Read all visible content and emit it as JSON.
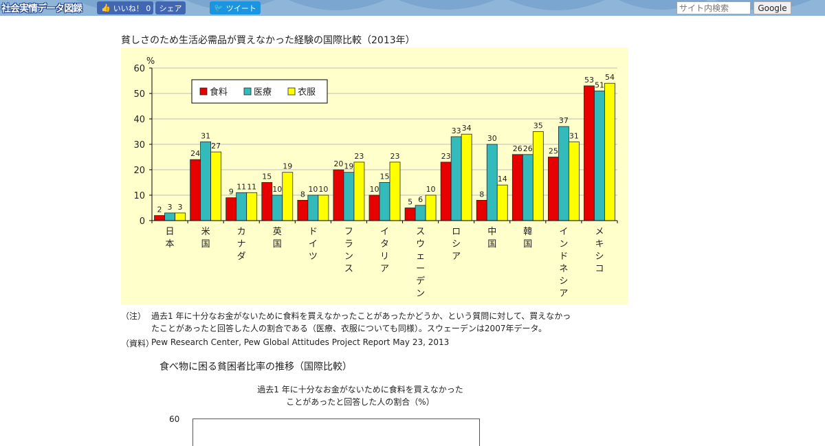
{
  "header": {
    "logo": "社会実情データ図録",
    "like_label": "いいね！ 0",
    "share_label": "シェア",
    "tweet_label": "ツイート",
    "search_placeholder": "サイト内検索",
    "search_button": "Google"
  },
  "chart_title": "貧しさのため生活必需品が買えなかった経験の国際比較（2013年）",
  "chart_data": {
    "type": "bar",
    "title": "貧しさのため生活必需品が買えなかった経験の国際比較（2013年）",
    "ylabel": "%",
    "ylim": [
      0,
      60
    ],
    "yticks": [
      0,
      10,
      20,
      30,
      40,
      50,
      60
    ],
    "grid": true,
    "legend_position": "top-left",
    "categories": [
      "日本",
      "米国",
      "カナダ",
      "英国",
      "ドイツ",
      "フランス",
      "イタリア",
      "スウェーデン",
      "ロシア",
      "中国",
      "韓国",
      "インドネシア",
      "メキシコ"
    ],
    "series": [
      {
        "name": "食料",
        "color": "#e60000",
        "values": [
          2,
          24,
          9,
          15,
          8,
          20,
          10,
          5,
          23,
          8,
          26,
          25,
          53
        ]
      },
      {
        "name": "医療",
        "color": "#33bbbb",
        "values": [
          3,
          31,
          11,
          10,
          10,
          19,
          15,
          6,
          33,
          30,
          26,
          37,
          51
        ]
      },
      {
        "name": "衣服",
        "color": "#ffff00",
        "values": [
          3,
          27,
          11,
          19,
          10,
          23,
          23,
          10,
          34,
          14,
          35,
          31,
          54
        ]
      }
    ]
  },
  "notes": {
    "note_label": "（注）",
    "note_line1": "過去1 年に十分なお金がないために食料を買えなかったことがあったかどうか、という質問に対して、買えなかっ",
    "note_line2": "たことがあったと回答した人の割合である（医療、衣服についても同様）。スウェーデンは2007年データ。",
    "source_label": "（資料）",
    "source_text": "Pew Research Center, Pew Global Attitudes Project Report May 23, 2013"
  },
  "chart2": {
    "title": "食べ物に困る貧困者比率の推移（国際比較）",
    "subtitle_line1": "過去1 年に十分なお金がないために食料を買えなかった",
    "subtitle_line2": "ことがあったと回答した人の割合（%）",
    "ytick_top": "60"
  }
}
